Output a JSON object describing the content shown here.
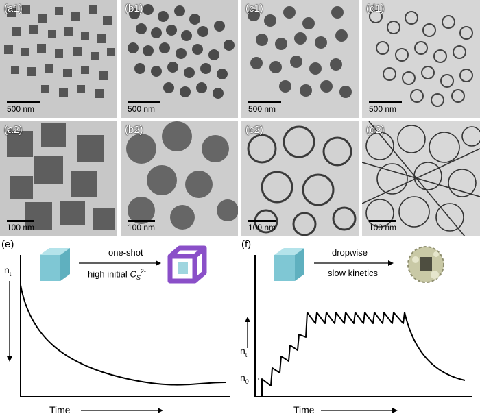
{
  "figure": {
    "top_row": [
      {
        "label": "(a1)",
        "scale": "500 nm"
      },
      {
        "label": "(b1)",
        "scale": "500 nm"
      },
      {
        "label": "(c1)",
        "scale": "500 nm"
      },
      {
        "label": "(d1)",
        "scale": "500 nm"
      }
    ],
    "bottom_row": [
      {
        "label": "(a2)",
        "scale": "100 nm"
      },
      {
        "label": "(b2)",
        "scale": "100 nm"
      },
      {
        "label": "(c2)",
        "scale": "100 nm"
      },
      {
        "label": "(d2)",
        "scale": "100 nm"
      }
    ],
    "panel_e": {
      "label": "(e)",
      "arrow_top": "one-shot",
      "arrow_bottom_prefix": "high initial ",
      "arrow_bottom_symbol": "C",
      "arrow_bottom_sub": "S",
      "arrow_bottom_sup": "2-",
      "y_label": "n",
      "y_sub": "t",
      "x_label": "Time"
    },
    "panel_f": {
      "label": "(f)",
      "arrow_top": "dropwise",
      "arrow_bottom": "slow kinetics",
      "y_label": "n",
      "y_sub": "t",
      "n0_label": "n",
      "n0_sub": "0",
      "x_label": "Time"
    },
    "colors": {
      "cube": "#8fd0dc",
      "cage": "#8a4fc8",
      "micrograph_bg": "#c8c8c8"
    }
  }
}
